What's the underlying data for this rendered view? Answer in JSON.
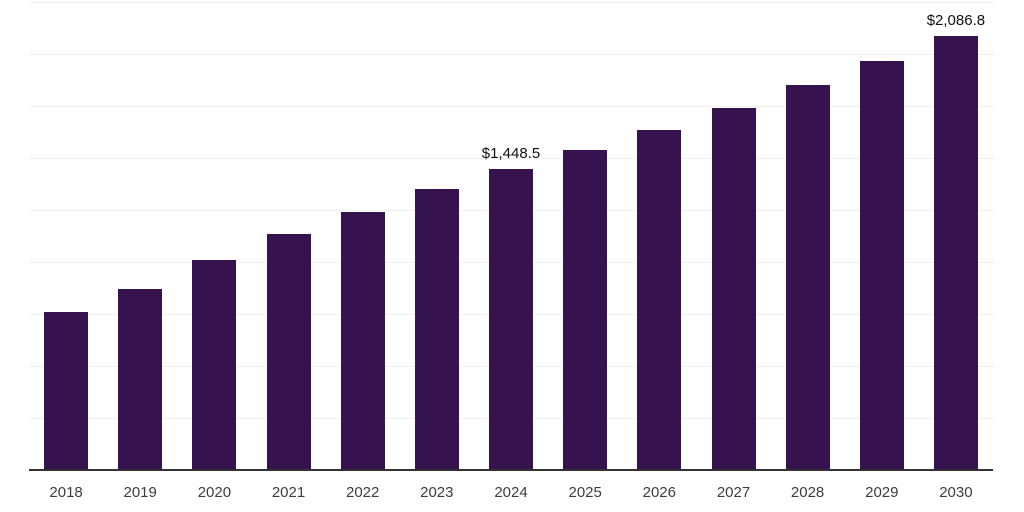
{
  "chart_data": {
    "type": "bar",
    "title": "",
    "xlabel": "",
    "ylabel": "",
    "categories": [
      "2018",
      "2019",
      "2020",
      "2021",
      "2022",
      "2023",
      "2024",
      "2025",
      "2026",
      "2027",
      "2028",
      "2029",
      "2030"
    ],
    "values": [
      760,
      872,
      1010,
      1133,
      1242,
      1350,
      1448.5,
      1540,
      1637,
      1739,
      1850,
      1968,
      2086.8
    ],
    "value_labels": {
      "2024": "$1,448.5",
      "2030": "$2,086.8"
    },
    "ylim": [
      0,
      2250
    ],
    "gridline_step": 250,
    "grid": "horizontal-only",
    "legend": "none",
    "colors": {
      "bar": "#36124F",
      "gridline": "#F0F0F0",
      "axis": "#333333",
      "tick_label": "#3D3D3D",
      "value_label": "#111111",
      "background": "#FFFFFF"
    }
  }
}
